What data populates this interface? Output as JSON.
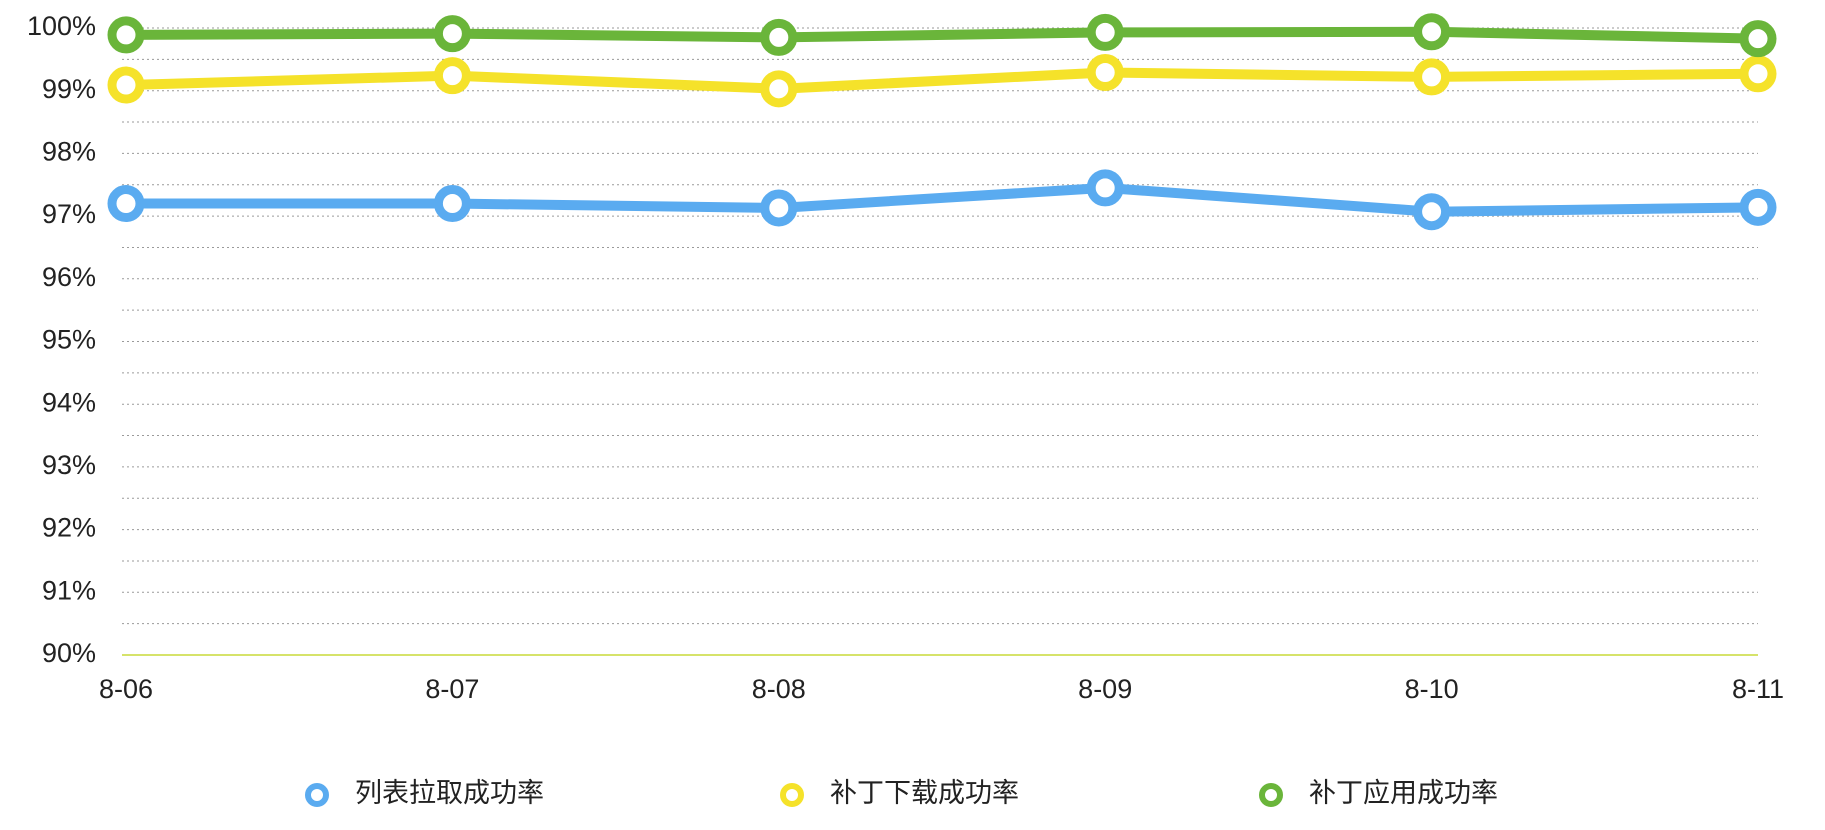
{
  "chart_data": {
    "type": "line",
    "x": [
      "8-06",
      "8-07",
      "8-08",
      "8-09",
      "8-10",
      "8-11"
    ],
    "series": [
      {
        "name": "列表拉取成功率",
        "color": "#5aabf0",
        "values": [
          97.2,
          97.2,
          97.13,
          97.45,
          97.07,
          97.14
        ]
      },
      {
        "name": "补丁下载成功率",
        "color": "#f5e22a",
        "values": [
          99.09,
          99.24,
          99.03,
          99.29,
          99.22,
          99.27
        ]
      },
      {
        "name": "补丁应用成功率",
        "color": "#6ab53a",
        "values": [
          99.89,
          99.91,
          99.85,
          99.93,
          99.94,
          99.83
        ]
      }
    ],
    "ylim": [
      90,
      100
    ],
    "yticks": [
      {
        "value": 90,
        "label": "90%"
      },
      {
        "value": 91,
        "label": "91%"
      },
      {
        "value": 92,
        "label": "92%"
      },
      {
        "value": 93,
        "label": "93%"
      },
      {
        "value": 94,
        "label": "94%"
      },
      {
        "value": 95,
        "label": "95%"
      },
      {
        "value": 96,
        "label": "96%"
      },
      {
        "value": 97,
        "label": "97%"
      },
      {
        "value": 98,
        "label": "98%"
      },
      {
        "value": 99,
        "label": "99%"
      },
      {
        "value": 100,
        "label": "100%"
      }
    ],
    "grid": true,
    "legend": "bottom"
  }
}
